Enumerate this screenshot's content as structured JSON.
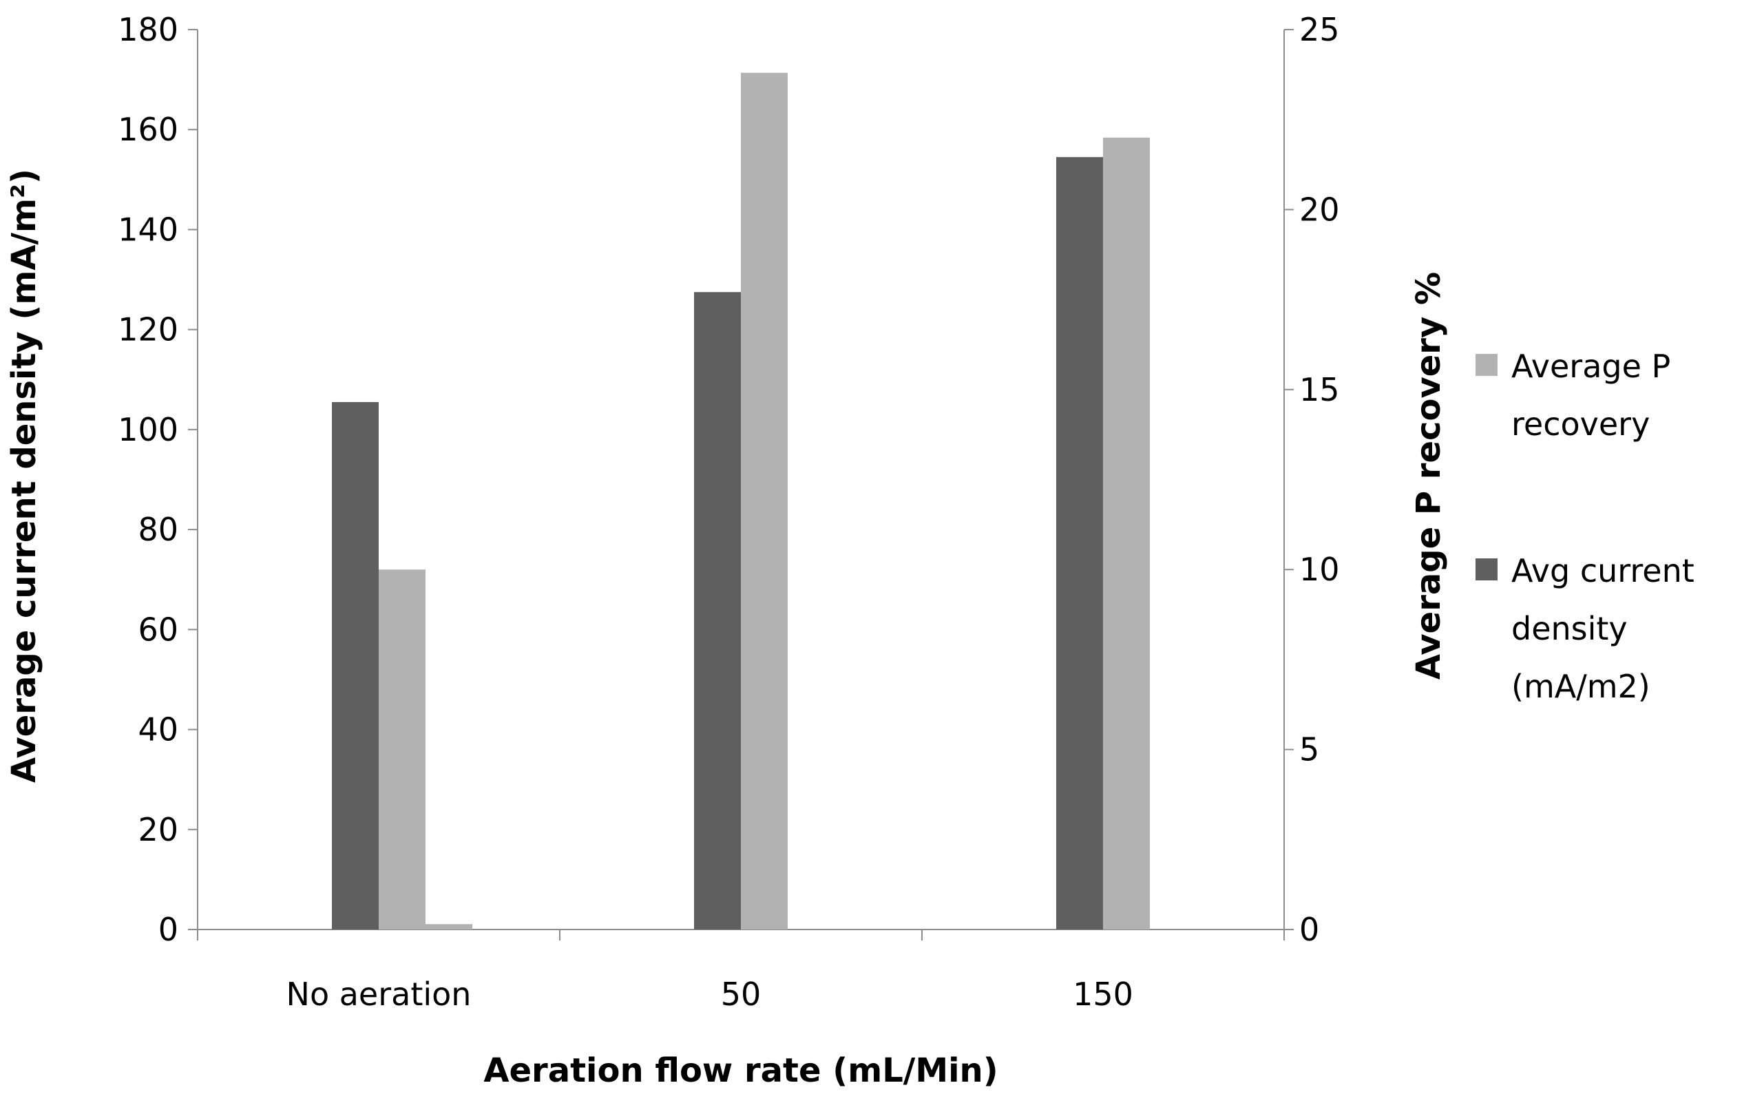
{
  "chart_data": {
    "type": "bar",
    "title": "",
    "categories": [
      "No aeration",
      "50",
      "150"
    ],
    "xlabel": "Aeration flow rate (mL/Min)",
    "ylabel": "Average current density (mA/m²)",
    "y2label": "Average P recovery %",
    "ylim": [
      0,
      180
    ],
    "y2lim": [
      0,
      25
    ],
    "yticks": [
      "0",
      "20",
      "40",
      "60",
      "80",
      "100",
      "120",
      "140",
      "160",
      "180"
    ],
    "y2ticks": [
      "0",
      "5",
      "10",
      "15",
      "20",
      "25"
    ],
    "series": [
      {
        "name": "Avg current density (mA/m2)",
        "axis": "left",
        "color": "#5f5f5f",
        "values": [
          105.5,
          127.5,
          154.5
        ]
      },
      {
        "name": "Average P recovery",
        "axis": "right",
        "color": "#b2b2b2",
        "values": [
          10.0,
          23.8,
          22.0
        ]
      }
    ],
    "extra_bar": {
      "category": "No aeration",
      "value": 0.15,
      "axis": "right",
      "color": "#b2b2b2"
    },
    "legend": {
      "position": "right",
      "items": [
        {
          "lines": [
            "Average P",
            "recovery"
          ],
          "color": "#b2b2b2"
        },
        {
          "lines": [
            "Avg current",
            "density",
            "(mA/m2)"
          ],
          "color": "#5f5f5f"
        }
      ]
    },
    "grid": false
  }
}
